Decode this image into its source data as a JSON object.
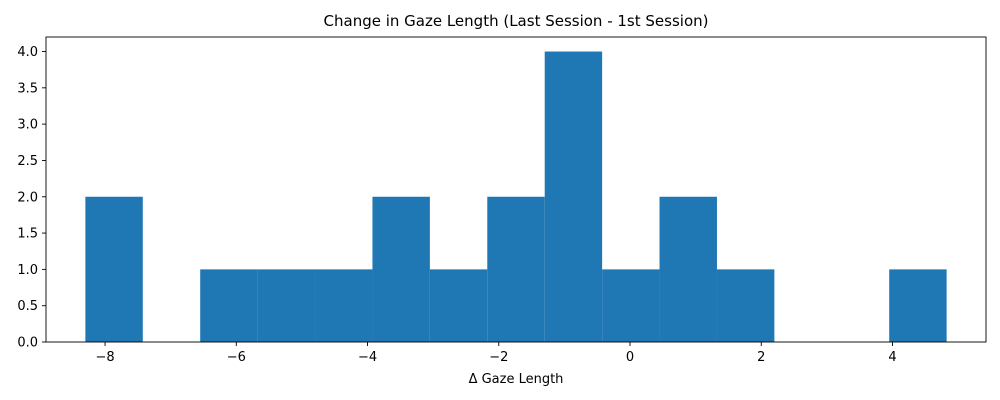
{
  "chart_data": {
    "type": "bar",
    "title": "Change in Gaze Length (Last Session - 1st Session)",
    "xlabel": "Δ Gaze Length",
    "ylabel": "",
    "bin_edges": [
      -8.3,
      -7.425,
      -6.55,
      -5.675,
      -4.8,
      -3.925,
      -3.05,
      -2.175,
      -1.3,
      -0.425,
      0.45,
      1.325,
      2.2,
      3.075,
      3.95,
      4.825
    ],
    "values": [
      2,
      0,
      1,
      1,
      1,
      2,
      1,
      2,
      4,
      1,
      2,
      1,
      0,
      0,
      1
    ],
    "xlim": [
      -8.9,
      5.425
    ],
    "ylim": [
      0,
      4.2
    ],
    "xticks": [
      -8,
      -6,
      -4,
      -2,
      0,
      2,
      4
    ],
    "xtick_labels": [
      "−8",
      "−6",
      "−4",
      "−2",
      "0",
      "2",
      "4"
    ],
    "yticks": [
      0.0,
      0.5,
      1.0,
      1.5,
      2.0,
      2.5,
      3.0,
      3.5,
      4.0
    ],
    "ytick_labels": [
      "0.0",
      "0.5",
      "1.0",
      "1.5",
      "2.0",
      "2.5",
      "3.0",
      "3.5",
      "4.0"
    ],
    "bar_color": "#1f77b4",
    "grid": false,
    "legend": "none"
  }
}
